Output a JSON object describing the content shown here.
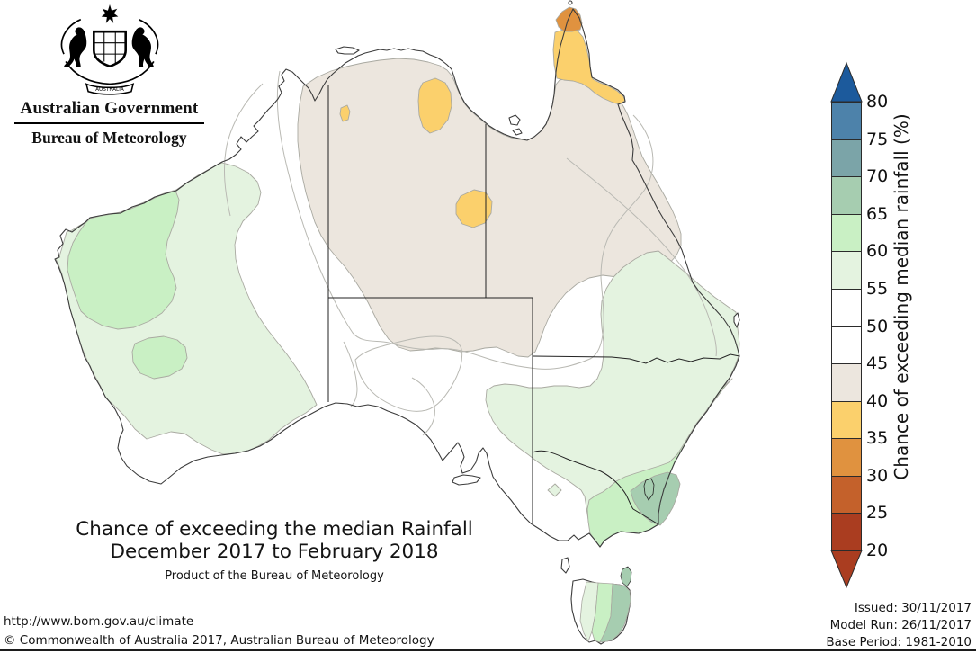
{
  "logo": {
    "government": "Australian Government",
    "bureau": "Bureau of Meteorology",
    "scroll": "AUSTRALIA"
  },
  "title": {
    "line1": "Chance of exceeding the median Rainfall",
    "line2": "December 2017 to February 2018",
    "subtitle": "Product of the Bureau of Meteorology"
  },
  "legend": {
    "axis_label": "Chance of exceeding median rainfall (%)",
    "tick_labels": [
      "80",
      "75",
      "70",
      "65",
      "60",
      "55",
      "50",
      "45",
      "40",
      "35",
      "30",
      "25",
      "20"
    ],
    "arrow_top_color": "#1c5a9c",
    "arrow_bottom_color": "#aa3d20",
    "bands": [
      {
        "range": "75-80",
        "color": "#4d82aa"
      },
      {
        "range": "70-75",
        "color": "#7ba4a8"
      },
      {
        "range": "65-70",
        "color": "#a6cdb0"
      },
      {
        "range": "60-65",
        "color": "#c9f0c4"
      },
      {
        "range": "55-60",
        "color": "#e4f3e0"
      },
      {
        "range": "50-55",
        "color": "#ffffff"
      },
      {
        "range": "45-50",
        "color": "#ffffff"
      },
      {
        "range": "40-45",
        "color": "#ece6de"
      },
      {
        "range": "35-40",
        "color": "#fbd06c"
      },
      {
        "range": "30-35",
        "color": "#e0923f"
      },
      {
        "range": "25-30",
        "color": "#c4612b"
      },
      {
        "range": "20-25",
        "color": "#aa3d20"
      }
    ]
  },
  "map_regions": [
    {
      "band": "40-45",
      "area": "Top End, Gulf Country, central NT, north-west Queensland and far northern SA"
    },
    {
      "band": "35-40",
      "area": "Cape York Peninsula, patches of the Northern Territory and east Kimberley"
    },
    {
      "band": "30-35",
      "area": "Tip of Cape York Peninsula"
    },
    {
      "band": "55-60",
      "area": "Western WA, eastern SA into inland NSW, southern Queensland, western Tasmania band"
    },
    {
      "band": "60-65",
      "area": "Pilbara and central WA, NSW coast, eastern Victoria, central Tasmania band"
    },
    {
      "band": "65-70",
      "area": "South-east NSW, eastern Tasmania and Flinders Island"
    },
    {
      "band": "45-55",
      "area": "Remainder of the continent (near-even chances, shown white)"
    }
  ],
  "footer": {
    "url": "http://www.bom.gov.au/climate",
    "copyright": "© Commonwealth of Australia 2017, Australian Bureau of Meteorology",
    "issued_label": "Issued: 30/11/2017",
    "model_run_label": "Model Run: 26/11/2017",
    "base_period_label": "Base Period: 1981-2010"
  }
}
